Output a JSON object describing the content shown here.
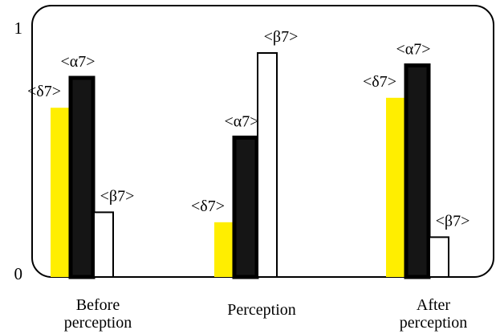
{
  "chart_data": {
    "type": "bar",
    "categories": [
      "Before\nperception",
      "Perception",
      "After\nperception"
    ],
    "series": [
      {
        "label": "<δ7>",
        "color": "#ffee00",
        "values": [
          0.68,
          0.22,
          0.72
        ]
      },
      {
        "label": "<α7>",
        "color": "#151515",
        "values": [
          0.8,
          0.56,
          0.85
        ]
      },
      {
        "label": "<β7>",
        "color": "#ffffff",
        "values": [
          0.26,
          0.9,
          0.16
        ]
      }
    ],
    "yticks": [
      "1",
      "0"
    ],
    "ylim": [
      0,
      1
    ],
    "grid": false
  }
}
